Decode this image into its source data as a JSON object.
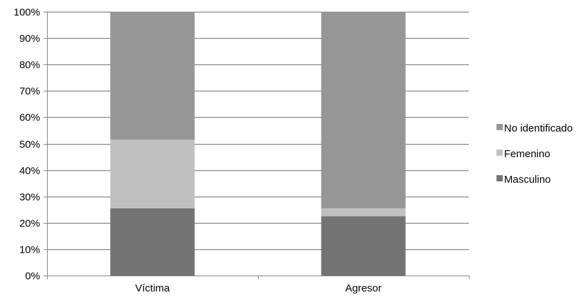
{
  "chart_data": {
    "type": "bar",
    "stacked": true,
    "percent_stacked": true,
    "categories": [
      "Víctima",
      "Agresor"
    ],
    "series": [
      {
        "name": "Masculino",
        "values": [
          25.5,
          22.5
        ],
        "color": "#737373"
      },
      {
        "name": "Femenino",
        "values": [
          26.0,
          3.0
        ],
        "color": "#c0c0c0"
      },
      {
        "name": "No identificado",
        "values": [
          48.5,
          74.5
        ],
        "color": "#969696"
      }
    ],
    "ylim": [
      0,
      100
    ],
    "yticks": [
      "0%",
      "10%",
      "20%",
      "30%",
      "40%",
      "50%",
      "60%",
      "70%",
      "80%",
      "90%",
      "100%"
    ],
    "grid": true,
    "legend_position": "right",
    "legend_order": [
      "No identificado",
      "Femenino",
      "Masculino"
    ],
    "gridline_color": "#868686",
    "title": "",
    "xlabel": "",
    "ylabel": ""
  }
}
